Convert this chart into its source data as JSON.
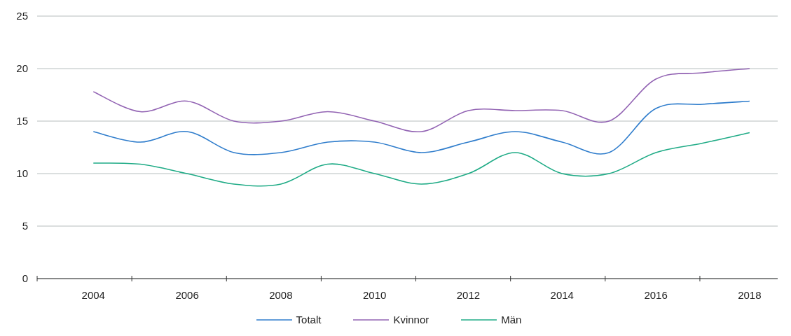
{
  "chart_data": {
    "type": "line",
    "x": [
      2004,
      2005,
      2006,
      2007,
      2008,
      2009,
      2010,
      2011,
      2012,
      2013,
      2014,
      2015,
      2016,
      2017,
      2018
    ],
    "series": [
      {
        "name": "Totalt",
        "color": "#2f7dcc",
        "values": [
          14,
          13,
          14,
          12,
          12,
          13,
          13,
          12,
          13,
          14,
          13,
          12,
          16.2,
          16.6,
          16.9
        ]
      },
      {
        "name": "Kvinnor",
        "color": "#9263b3",
        "values": [
          17.8,
          15.9,
          16.9,
          15,
          15,
          15.9,
          15,
          14,
          16,
          16,
          16,
          15,
          19,
          19.6,
          20
        ]
      },
      {
        "name": "Män",
        "color": "#1fab86",
        "values": [
          11,
          10.9,
          10,
          9,
          9,
          10.9,
          10,
          9,
          10,
          12,
          10,
          10,
          12,
          12.9,
          13.9
        ]
      }
    ],
    "xlim": [
      2002.8,
      2018.6
    ],
    "xticks": [
      {
        "value": 2002.8,
        "label": null
      },
      2004,
      {
        "value": 2004.82,
        "label": null
      },
      2006,
      {
        "value": 2006.84,
        "label": null
      },
      2008,
      {
        "value": 2008.86,
        "label": null
      },
      2010,
      {
        "value": 2010.88,
        "label": null
      },
      2012,
      {
        "value": 2012.9,
        "label": null
      },
      2014,
      {
        "value": 2014.92,
        "label": null
      },
      2016,
      {
        "value": 2016.94,
        "label": null
      },
      2018
    ],
    "ylim": [
      0,
      25
    ],
    "yticks": [
      0,
      5,
      10,
      15,
      20,
      25
    ],
    "grid": "y",
    "legend": "bottom",
    "marker": "none",
    "line_style": "solid"
  }
}
